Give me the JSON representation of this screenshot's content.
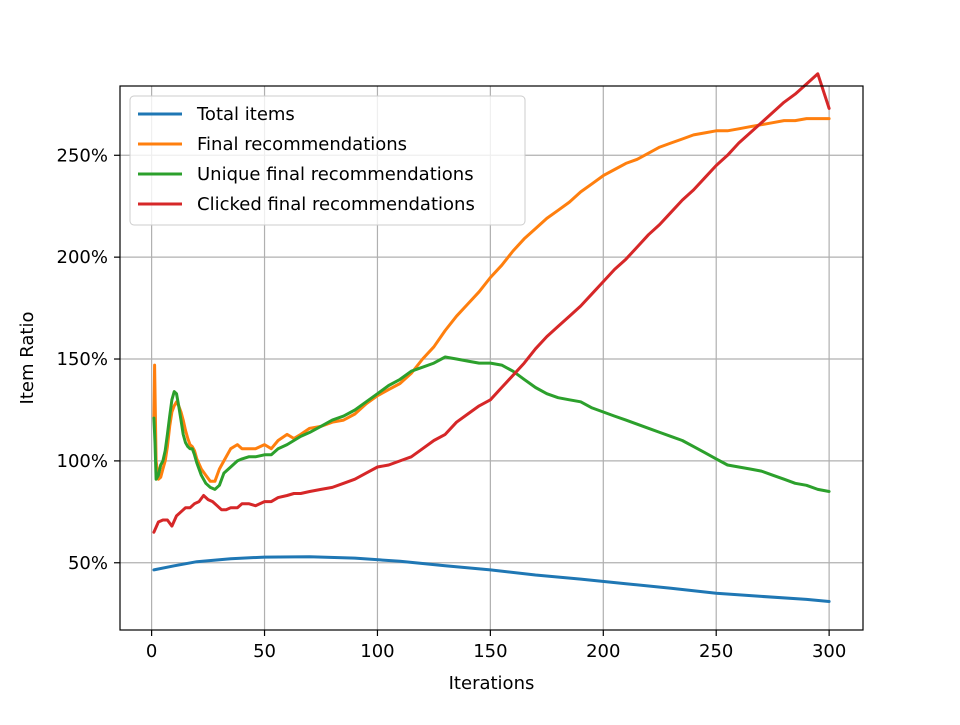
{
  "chart_data": {
    "type": "line",
    "xlabel": "Iterations",
    "ylabel": "Item Ratio",
    "xlim": [
      -14,
      315
    ],
    "ylim": [
      17,
      284
    ],
    "xticks": [
      0,
      50,
      100,
      150,
      200,
      250,
      300
    ],
    "xtick_labels": [
      "0",
      "50",
      "100",
      "150",
      "200",
      "250",
      "300"
    ],
    "yticks": [
      50,
      100,
      150,
      200,
      250
    ],
    "ytick_labels": [
      "50%",
      "100%",
      "150%",
      "200%",
      "250%"
    ],
    "grid": true,
    "legend_position": "top-left",
    "series": [
      {
        "name": "Total items",
        "color": "#1f77b4",
        "x": [
          1,
          10,
          20,
          35,
          50,
          70,
          90,
          110,
          130,
          150,
          170,
          190,
          210,
          230,
          250,
          270,
          290,
          300
        ],
        "values": [
          46.5,
          48.5,
          50.5,
          52,
          52.8,
          53,
          52.3,
          50.7,
          48.5,
          46.5,
          44,
          42,
          39.7,
          37.5,
          35,
          33.5,
          32,
          31
        ]
      },
      {
        "name": "Final recommendations",
        "color": "#ff7f0e",
        "x": [
          1,
          1.3,
          2,
          3,
          4,
          5,
          6,
          7,
          8,
          9,
          10,
          11,
          12,
          13,
          14,
          15,
          16,
          17,
          18,
          19,
          20,
          22,
          24,
          26,
          28,
          30,
          32,
          35,
          38,
          40,
          43,
          46,
          50,
          53,
          56,
          60,
          63,
          66,
          70,
          75,
          80,
          85,
          90,
          95,
          100,
          105,
          110,
          115,
          120,
          125,
          130,
          135,
          140,
          145,
          150,
          155,
          160,
          165,
          170,
          175,
          180,
          185,
          190,
          195,
          200,
          205,
          210,
          215,
          220,
          225,
          230,
          235,
          240,
          245,
          250,
          255,
          260,
          265,
          270,
          275,
          280,
          285,
          290,
          295,
          300
        ],
        "values": [
          121,
          147,
          100,
          91,
          92,
          96,
          100,
          107,
          117,
          124,
          127,
          129,
          127,
          124,
          120,
          115,
          111,
          108,
          107,
          105,
          101,
          96,
          93,
          90,
          90,
          96,
          100,
          106,
          108,
          106,
          106,
          106,
          108,
          106,
          110,
          113,
          111,
          113,
          116,
          117,
          119,
          120,
          123,
          128,
          132,
          135,
          138,
          143,
          150,
          156,
          164,
          171,
          177,
          183,
          190,
          196,
          203,
          209,
          214,
          219,
          223,
          227,
          232,
          236,
          240,
          243,
          246,
          248,
          251,
          254,
          256,
          258,
          260,
          261,
          262,
          262,
          263,
          264,
          265,
          266,
          267,
          267,
          268,
          268,
          268
        ]
      },
      {
        "name": "Unique final recommendations",
        "color": "#2ca02c",
        "x": [
          1,
          1.5,
          2,
          3,
          4,
          5,
          6,
          7,
          8,
          9,
          10,
          11,
          12,
          13,
          14,
          15,
          16,
          17,
          18,
          19,
          20,
          22,
          24,
          26,
          28,
          30,
          32,
          35,
          38,
          40,
          43,
          46,
          50,
          53,
          56,
          60,
          63,
          66,
          70,
          75,
          80,
          85,
          90,
          95,
          100,
          105,
          110,
          115,
          120,
          125,
          130,
          135,
          140,
          145,
          150,
          155,
          160,
          165,
          170,
          175,
          180,
          185,
          190,
          195,
          200,
          205,
          210,
          215,
          220,
          225,
          230,
          235,
          240,
          245,
          250,
          255,
          260,
          265,
          270,
          275,
          280,
          285,
          290,
          295,
          300
        ],
        "values": [
          121,
          109,
          91,
          93,
          98,
          100,
          105,
          113,
          122,
          130,
          134,
          133,
          127,
          120,
          113,
          109,
          107,
          106,
          106,
          103,
          99,
          93,
          89,
          87,
          86,
          88,
          94,
          97,
          100,
          101,
          102,
          102,
          103,
          103,
          106,
          108,
          110,
          112,
          114,
          117,
          120,
          122,
          125,
          129,
          133,
          137,
          140,
          144,
          146,
          148,
          151,
          150,
          149,
          148,
          148,
          147,
          144,
          140,
          136,
          133,
          131,
          130,
          129,
          126,
          124,
          122,
          120,
          118,
          116,
          114,
          112,
          110,
          107,
          104,
          101,
          98,
          97,
          96,
          95,
          93,
          91,
          89,
          88,
          86,
          85
        ]
      },
      {
        "name": "Clicked final recommendations",
        "color": "#d62728",
        "x": [
          1,
          3,
          5,
          7,
          9,
          11,
          13,
          15,
          17,
          19,
          21,
          23,
          25,
          27,
          29,
          31,
          33,
          35,
          38,
          40,
          43,
          46,
          50,
          53,
          56,
          60,
          63,
          66,
          70,
          75,
          80,
          85,
          90,
          95,
          100,
          105,
          110,
          115,
          120,
          125,
          130,
          135,
          140,
          145,
          150,
          155,
          160,
          165,
          170,
          175,
          180,
          185,
          190,
          195,
          200,
          205,
          210,
          215,
          220,
          225,
          230,
          235,
          240,
          245,
          250,
          255,
          260,
          265,
          270,
          275,
          280,
          285,
          290,
          295,
          300
        ],
        "values": [
          65,
          70,
          71,
          71,
          68,
          73,
          75,
          77,
          77,
          79,
          80,
          83,
          81,
          80,
          78,
          76,
          76,
          77,
          77,
          79,
          79,
          78,
          80,
          80,
          82,
          83,
          84,
          84,
          85,
          86,
          87,
          89,
          91,
          94,
          97,
          98,
          100,
          102,
          106,
          110,
          113,
          119,
          123,
          127,
          130,
          136,
          142,
          148,
          155,
          161,
          166,
          171,
          176,
          182,
          188,
          194,
          199,
          205,
          211,
          216,
          222,
          228,
          233,
          239,
          245,
          250,
          256,
          261,
          266,
          271,
          276,
          280,
          285,
          290,
          273
        ]
      }
    ]
  }
}
